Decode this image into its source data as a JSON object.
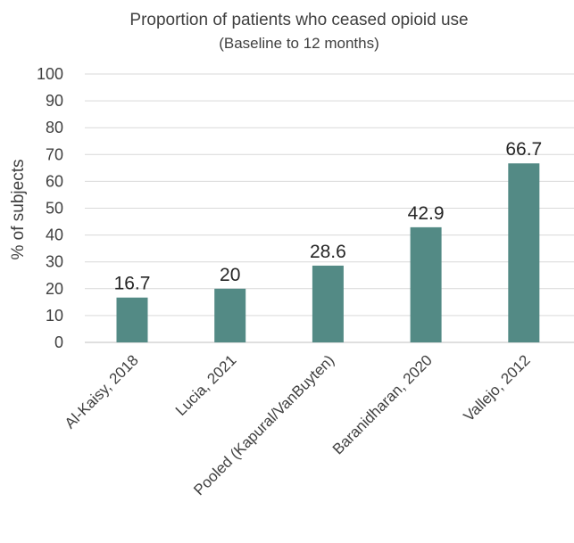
{
  "chart_data": {
    "type": "bar",
    "title": "Proportion of patients who ceased opioid use",
    "subtitle": "(Baseline to 12 months)",
    "xlabel": "",
    "ylabel": "% of subjects",
    "ylim": [
      0,
      100
    ],
    "yticks": [
      0,
      10,
      20,
      30,
      40,
      50,
      60,
      70,
      80,
      90,
      100
    ],
    "categories": [
      "Al-Kaisy, 2018",
      "Lucia, 2021",
      "Pooled (Kapural/VanBuyten)",
      "Baranidharan, 2020",
      "Vallejo, 2012"
    ],
    "values": [
      16.7,
      20,
      28.6,
      42.9,
      66.7
    ],
    "data_labels": [
      "16.7",
      "20",
      "28.6",
      "42.9",
      "66.7"
    ],
    "bar_color": "#538a85",
    "grid": true,
    "legend": "none"
  }
}
